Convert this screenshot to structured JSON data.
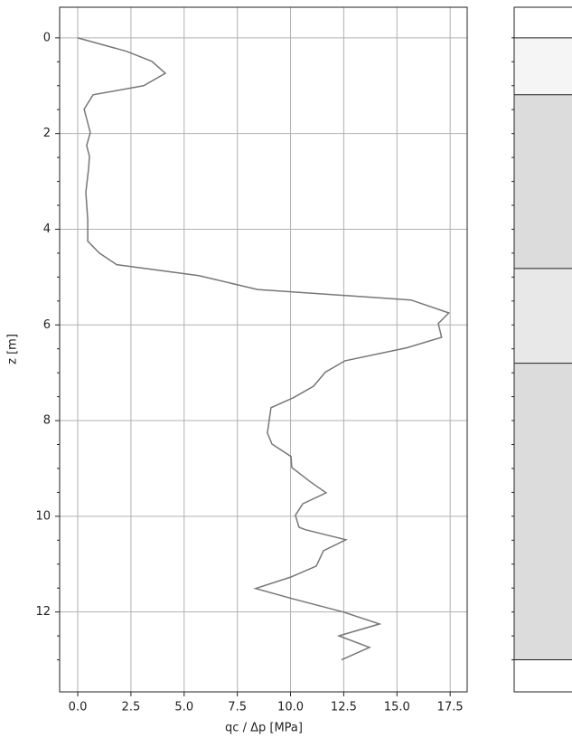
{
  "chart_data": [
    {
      "type": "line",
      "xlabel": "qc / Δp [MPa]",
      "ylabel": "z [m]",
      "color": "#777777",
      "grid": true,
      "y_inverted": true,
      "xlim": [
        -0.85,
        18.3
      ],
      "ylim": [
        -0.64,
        13.67
      ],
      "xticks": [
        0.0,
        2.5,
        5.0,
        7.5,
        10.0,
        12.5,
        15.0,
        17.5
      ],
      "xtick_labels": [
        "0.0",
        "2.5",
        "5.0",
        "7.5",
        "10.0",
        "12.5",
        "15.0",
        "17.5"
      ],
      "yticks": [
        0,
        2,
        4,
        6,
        8,
        10,
        12
      ],
      "yminorticks": [
        0.5,
        1,
        1.5,
        2.5,
        3,
        3.5,
        4.5,
        5,
        5.5,
        6.5,
        7,
        7.5,
        8.5,
        9,
        9.5,
        10.5,
        11,
        11.5,
        12.5,
        13
      ],
      "x": [
        0,
        2.29,
        3.48,
        4.12,
        3.1,
        0.72,
        0.3,
        0.59,
        0.42,
        0.55,
        0.51,
        0.38,
        0.47,
        0.47,
        1.02,
        1.83,
        5.69,
        8.45,
        15.66,
        17.44,
        16.94,
        17.1,
        15.45,
        12.56,
        11.63,
        11.08,
        10.14,
        9.08,
        9.0,
        8.91,
        9.13,
        10.02,
        10.06,
        10.87,
        11.67,
        10.57,
        10.23,
        10.4,
        10.7,
        12.6,
        11.55,
        11.21,
        10.02,
        8.36,
        10.06,
        12.48,
        14.18,
        12.27,
        13.71,
        12.39
      ],
      "values": [
        0,
        0.28,
        0.49,
        0.74,
        1.0,
        1.19,
        1.49,
        1.98,
        2.25,
        2.48,
        2.74,
        3.23,
        3.8,
        4.25,
        4.5,
        4.74,
        4.97,
        5.26,
        5.48,
        5.75,
        5.97,
        6.26,
        6.48,
        6.75,
        6.99,
        7.28,
        7.52,
        7.73,
        7.98,
        8.26,
        8.49,
        8.75,
        8.98,
        9.26,
        9.51,
        9.74,
        9.98,
        10.23,
        10.28,
        10.49,
        10.72,
        11.04,
        11.27,
        11.51,
        11.72,
        12.0,
        12.25,
        12.5,
        12.74,
        13.0
      ]
    },
    {
      "type": "layers",
      "ylim": [
        -0.64,
        13.67
      ],
      "y_inverted": true,
      "yminorticks": [
        0,
        0.5,
        1,
        1.5,
        2,
        2.5,
        3,
        3.5,
        4,
        4.5,
        5,
        5.5,
        6,
        6.5,
        7,
        7.5,
        8,
        8.5,
        9,
        9.5,
        10,
        10.5,
        11,
        11.5,
        12,
        12.5,
        13
      ],
      "boundaries": [
        0,
        1.19,
        4.82,
        6.8,
        13.0
      ],
      "colors": [
        "#f5f5f5",
        "#dcdcdc",
        "#e8e8e8",
        "#dcdcdc"
      ]
    }
  ]
}
